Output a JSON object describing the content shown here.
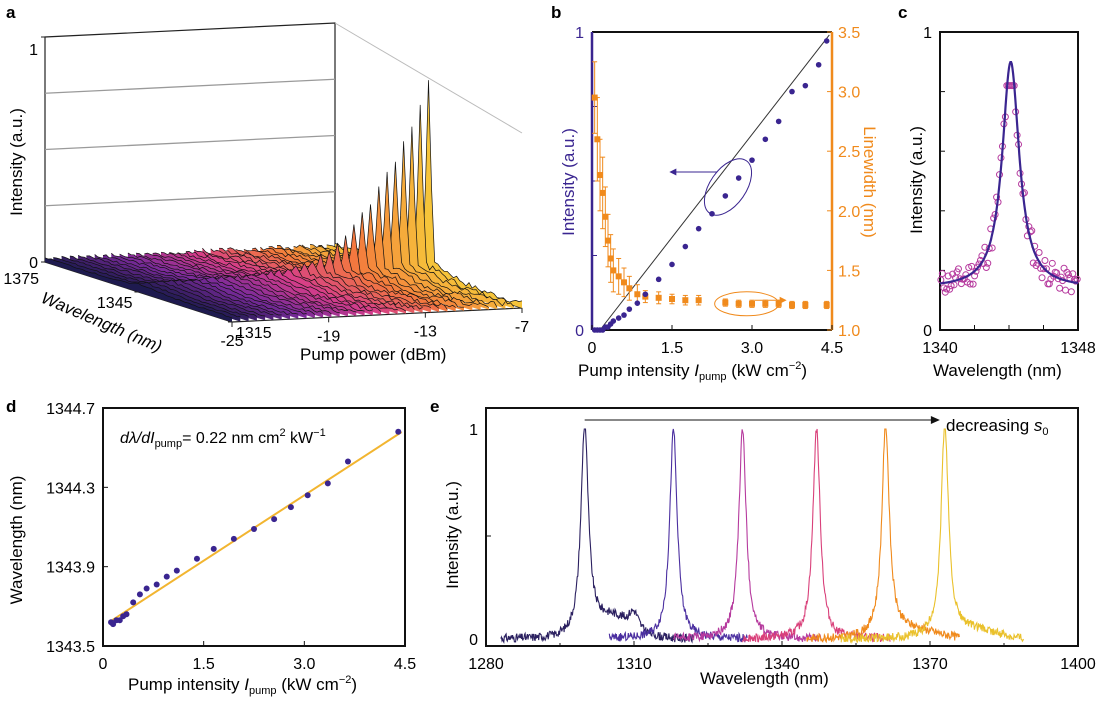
{
  "panels": {
    "a": {
      "letter": "a",
      "ylabel": "Intensity (a.u.)",
      "xlabel": "Pump power  (dBm)",
      "zlabel": "Wavelength (nm)"
    },
    "b": {
      "letter": "b",
      "ylabel_left": "Intensity (a.u.)",
      "ylabel_right": "Linewidth (nm)",
      "xlabel_main": "Pump intensity ",
      "xlabel_var": "I",
      "xlabel_sub": "pump",
      "xlabel_unit": "  (kW cm",
      "xlabel_exp": "−2",
      "xlabel_close": ")"
    },
    "c": {
      "letter": "c",
      "ylabel": "Intensity (a.u.)",
      "xlabel": "Wavelength (nm)"
    },
    "d": {
      "letter": "d",
      "ylabel": "Wavelength (nm)",
      "xlabel_main": "Pump intensity ",
      "xlabel_var": "I",
      "xlabel_sub": "pump",
      "xlabel_unit": " (kW cm",
      "xlabel_exp": "−2",
      "xlabel_close": ")",
      "annotation_main": "dλ/dI",
      "annotation_sub": "pump",
      "annotation_eq": "= 0.22 nm cm",
      "annotation_exp1": "2",
      "annotation_unit": " kW",
      "annotation_exp2": "−1"
    },
    "e": {
      "letter": "e",
      "ylabel": "Intensity (a.u.)",
      "xlabel": "Wavelength (nm)",
      "annotation": "decreasing ",
      "annotation_var": "s",
      "annotation_sub": "0"
    }
  },
  "chart_data": [
    {
      "panel": "a",
      "type": "area",
      "x_axis": {
        "label": "Pump power  (dBm)",
        "ticks": [
          "-25",
          "-19",
          "-13",
          "-7"
        ],
        "range": [
          -25,
          -7
        ]
      },
      "depth_axis": {
        "label": "Wavelength (nm)",
        "ticks": [
          "1375",
          "1345",
          "1315"
        ],
        "range": [
          1315,
          1375
        ]
      },
      "y_axis": {
        "label": "Intensity (a.u.)",
        "ticks": [
          "0",
          "1"
        ],
        "range": [
          0,
          1
        ]
      },
      "spectra_count": 36,
      "peak_wavelength": 1345,
      "peak_intensity_by_power": [
        0.01,
        0.01,
        0.01,
        0.01,
        0.01,
        0.01,
        0.01,
        0.01,
        0.01,
        0.01,
        0.01,
        0.01,
        0.01,
        0.01,
        0.01,
        0.02,
        0.02,
        0.02,
        0.03,
        0.04,
        0.05,
        0.06,
        0.08,
        0.1,
        0.13,
        0.16,
        0.2,
        0.25,
        0.3,
        0.36,
        0.42,
        0.48,
        0.55,
        0.63,
        0.72,
        0.82
      ],
      "colormap": [
        "#1e1a4f",
        "#7a2a9a",
        "#d53d8a",
        "#f47a3d",
        "#f6c43a"
      ]
    },
    {
      "panel": "b",
      "type": "scatter",
      "x_axis": {
        "label": "Pump intensity Ipump (kW cm−2)",
        "ticks": [
          "0",
          "1.5",
          "3.0",
          "4.5"
        ],
        "range": [
          0,
          4.5
        ]
      },
      "y_left": {
        "label": "Intensity (a.u.)",
        "ticks": [
          "0",
          "1"
        ],
        "range": [
          0,
          1
        ],
        "color": "#3a2590"
      },
      "y_right": {
        "label": "Linewidth (nm)",
        "ticks": [
          "1.0",
          "1.5",
          "2.0",
          "2.5",
          "3.0",
          "3.5"
        ],
        "range": [
          1.0,
          3.5
        ],
        "color": "#f08a1c"
      },
      "series": [
        {
          "name": "Intensity (a.u.)",
          "axis": "left",
          "color": "#3a2590",
          "x": [
            0.05,
            0.1,
            0.15,
            0.2,
            0.25,
            0.3,
            0.35,
            0.4,
            0.5,
            0.6,
            0.7,
            0.85,
            1.0,
            1.25,
            1.5,
            1.75,
            2.0,
            2.25,
            2.5,
            2.75,
            3.0,
            3.25,
            3.5,
            3.75,
            4.0,
            4.25,
            4.4
          ],
          "y": [
            0.0,
            0.0,
            0.0,
            0.0,
            0.01,
            0.01,
            0.02,
            0.03,
            0.04,
            0.05,
            0.07,
            0.09,
            0.12,
            0.17,
            0.22,
            0.28,
            0.34,
            0.39,
            0.45,
            0.51,
            0.57,
            0.64,
            0.7,
            0.8,
            0.82,
            0.89,
            0.97
          ]
        },
        {
          "name": "Linewidth (nm)",
          "axis": "right",
          "color": "#f08a1c",
          "x": [
            0.05,
            0.1,
            0.15,
            0.2,
            0.25,
            0.3,
            0.35,
            0.4,
            0.5,
            0.6,
            0.7,
            0.85,
            1.0,
            1.25,
            1.5,
            1.75,
            2.0,
            2.5,
            2.75,
            3.0,
            3.25,
            3.5,
            3.75,
            4.0,
            4.4
          ],
          "y": [
            2.95,
            2.6,
            2.3,
            2.15,
            1.95,
            1.75,
            1.6,
            1.5,
            1.45,
            1.4,
            1.35,
            1.3,
            1.28,
            1.27,
            1.26,
            1.25,
            1.25,
            1.23,
            1.22,
            1.22,
            1.22,
            1.22,
            1.21,
            1.21,
            1.21
          ],
          "err": [
            0.3,
            0.35,
            0.3,
            0.3,
            0.25,
            0.22,
            0.2,
            0.18,
            0.15,
            0.12,
            0.1,
            0.08,
            0.05,
            0.05,
            0.04,
            0.04,
            0.04,
            0.03,
            0.03,
            0.03,
            0.03,
            0.03,
            0.03,
            0.03,
            0.03
          ]
        }
      ]
    },
    {
      "panel": "c",
      "type": "scatter",
      "x_axis": {
        "label": "Wavelength (nm)",
        "ticks": [
          "1340",
          "1348"
        ],
        "range": [
          1340,
          1348
        ]
      },
      "y_axis": {
        "label": "Intensity (a.u.)",
        "ticks": [
          "0",
          "1"
        ],
        "range": [
          0,
          1
        ]
      },
      "series": [
        {
          "name": "fit",
          "kind": "line",
          "color": "#3a2590",
          "center": 1344.1,
          "fwhm": 1.2,
          "amplitude": 0.76,
          "baseline": 0.14
        },
        {
          "name": "data",
          "kind": "circles",
          "color": "#b63a9e",
          "noise": 0.04
        }
      ]
    },
    {
      "panel": "d",
      "type": "scatter",
      "x_axis": {
        "label": "Pump intensity Ipump (kW cm−2)",
        "ticks": [
          "0",
          "1.5",
          "3.0",
          "4.5"
        ],
        "range": [
          0,
          4.5
        ]
      },
      "y_axis": {
        "label": "Wavelength (nm)",
        "ticks": [
          "1343.5",
          "1343.9",
          "1344.3",
          "1344.7"
        ],
        "range": [
          1343.5,
          1344.7
        ]
      },
      "fit": {
        "slope": 0.22,
        "intercept": 1343.6,
        "color": "#f2b530",
        "x_range": [
          0.1,
          4.45
        ]
      },
      "series": [
        {
          "name": "data",
          "color": "#3a2590",
          "x": [
            0.12,
            0.15,
            0.2,
            0.25,
            0.3,
            0.35,
            0.45,
            0.55,
            0.65,
            0.8,
            0.95,
            1.1,
            1.4,
            1.65,
            1.95,
            2.25,
            2.55,
            2.8,
            3.05,
            3.35,
            3.65,
            4.4
          ],
          "y": [
            1343.62,
            1343.61,
            1343.63,
            1343.63,
            1343.65,
            1343.66,
            1343.72,
            1343.76,
            1343.79,
            1343.81,
            1343.85,
            1343.88,
            1343.94,
            1343.99,
            1344.04,
            1344.09,
            1344.14,
            1344.2,
            1344.26,
            1344.32,
            1344.43,
            1344.58
          ]
        }
      ]
    },
    {
      "panel": "e",
      "type": "line",
      "x_axis": {
        "label": "Wavelength (nm)",
        "ticks": [
          "1280",
          "1310",
          "1340",
          "1370",
          "1400"
        ],
        "range": [
          1280,
          1400
        ]
      },
      "y_axis": {
        "label": "Intensity (a.u.)",
        "ticks": [
          "0",
          "1"
        ],
        "range": [
          0,
          1
        ]
      },
      "series": [
        {
          "peak": 1300,
          "color": "#2b2060",
          "span": [
            1283,
            1322
          ]
        },
        {
          "peak": 1318,
          "color": "#4b2fa0",
          "span": [
            1305,
            1333
          ]
        },
        {
          "peak": 1332,
          "color": "#b63a9e",
          "span": [
            1318,
            1348
          ]
        },
        {
          "peak": 1347,
          "color": "#d9407a",
          "span": [
            1332,
            1362
          ]
        },
        {
          "peak": 1361,
          "color": "#f08a1c",
          "span": [
            1345,
            1376
          ]
        },
        {
          "peak": 1373,
          "color": "#eac12c",
          "span": [
            1352,
            1389
          ]
        }
      ]
    }
  ]
}
